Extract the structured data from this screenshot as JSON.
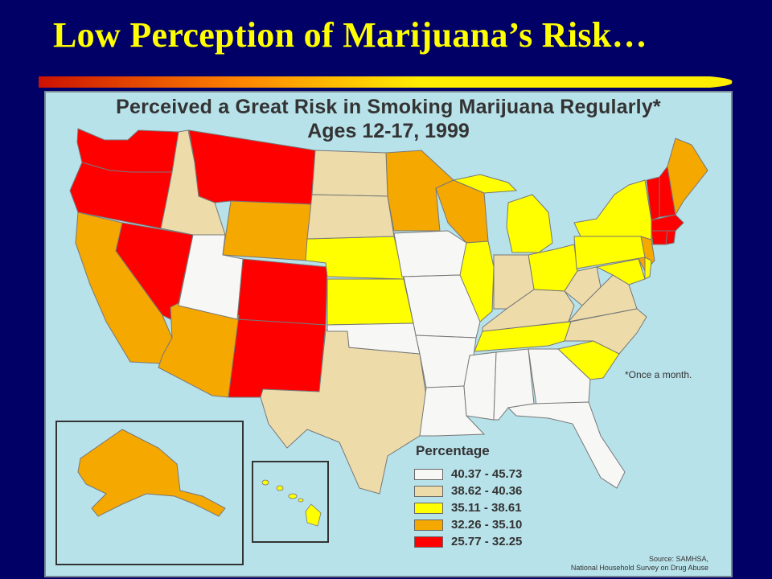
{
  "slide": {
    "title": "Low Perception of Marijuana’s Risk…",
    "bar_colors": {
      "start": "#cc1100",
      "mid": "#ff8800",
      "end": "#ffee00"
    }
  },
  "map": {
    "title_line1": "Perceived a Great Risk in Smoking Marijuana Regularly*",
    "title_line2": "Ages 12-17, 1999",
    "footnote": "*Once a month.",
    "background_color": "#b8e2ea",
    "legend": {
      "heading": "Percentage",
      "items": [
        {
          "range": "40.37 - 45.73",
          "color": "#f7f7f5"
        },
        {
          "range": "38.62 - 40.36",
          "color": "#eddcaa"
        },
        {
          "range": "35.11 - 38.61",
          "color": "#ffff00"
        },
        {
          "range": "32.26 - 35.10",
          "color": "#f5a800"
        },
        {
          "range": "25.77 - 32.25",
          "color": "#ff0000"
        }
      ]
    },
    "source_line1": "Source: SAMHSA,",
    "source_line2": "National Household Survey on Drug Abuse",
    "category_states": {
      "40.37 - 45.73": [
        "Utah",
        "Iowa",
        "Missouri",
        "Arkansas",
        "Oklahoma",
        "Louisiana",
        "Mississippi",
        "Alabama",
        "Georgia",
        "Florida"
      ],
      "38.62 - 40.36": [
        "Idaho",
        "North Dakota",
        "South Dakota",
        "Texas",
        "Indiana",
        "Kentucky",
        "West Virginia",
        "Virginia",
        "North Carolina"
      ],
      "35.11 - 38.61": [
        "Nebraska",
        "Kansas",
        "Illinois",
        "Michigan",
        "Ohio",
        "Tennessee",
        "South Carolina",
        "New York",
        "Pennsylvania",
        "Maryland",
        "Delaware",
        "Hawaii"
      ],
      "32.26 - 35.10": [
        "California",
        "Arizona",
        "Wyoming",
        "Minnesota",
        "Wisconsin",
        "Maine",
        "New Jersey",
        "Alaska"
      ],
      "25.77 - 32.25": [
        "Washington",
        "Oregon",
        "Montana",
        "Nevada",
        "Colorado",
        "New Mexico",
        "Vermont",
        "New Hampshire",
        "Massachusetts",
        "Connecticut",
        "Rhode Island"
      ]
    }
  }
}
